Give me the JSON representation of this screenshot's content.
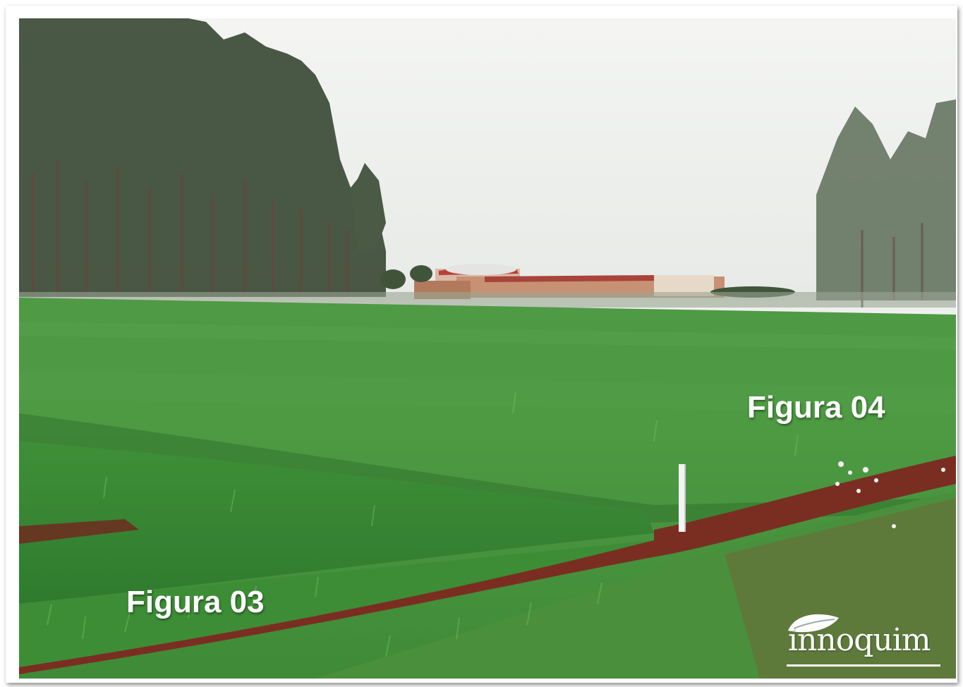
{
  "photo": {
    "subject": "green crop field with eucalyptus trees and farm buildings"
  },
  "labels": {
    "figura_04": "Figura 04",
    "figura_03": "Figura 03"
  },
  "logo": {
    "text": "innoquim"
  }
}
